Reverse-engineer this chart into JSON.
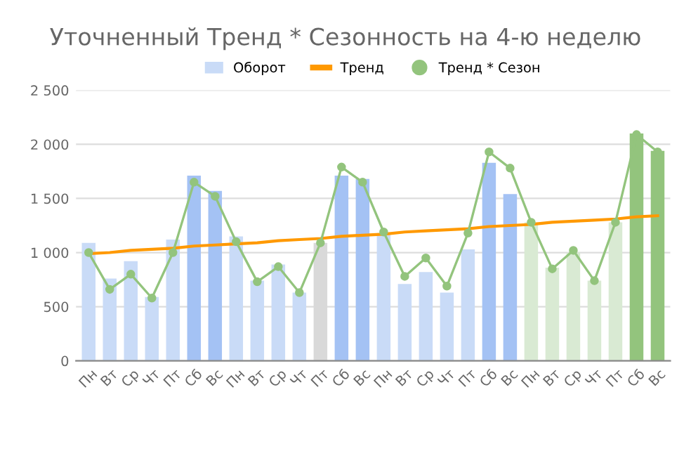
{
  "chart_data": {
    "type": "bar",
    "title": "Уточненный Тренд * Сезонность на 4-ю неделю",
    "categories": [
      "Пн",
      "Вт",
      "Ср",
      "Чт",
      "Пт",
      "Сб",
      "Вс",
      "Пн",
      "Вт",
      "Ср",
      "Чт",
      "Пт",
      "Сб",
      "Вс",
      "Пн",
      "Вт",
      "Ср",
      "Чт",
      "Пт",
      "Сб",
      "Вс",
      "Пн",
      "Вт",
      "Ср",
      "Чт",
      "Пт",
      "Сб",
      "Вс"
    ],
    "series": [
      {
        "name": "Оборот",
        "color": "#c9dbf7",
        "colors": [
          "#c9dbf7",
          "#c9dbf7",
          "#c9dbf7",
          "#c9dbf7",
          "#c9dbf7",
          "#a4c2f4",
          "#a4c2f4",
          "#c9dbf7",
          "#c9dbf7",
          "#c9dbf7",
          "#c9dbf7",
          "#d9d9d9",
          "#a4c2f4",
          "#a4c2f4",
          "#c9dbf7",
          "#c9dbf7",
          "#c9dbf7",
          "#c9dbf7",
          "#c9dbf7",
          "#a4c2f4",
          "#a4c2f4",
          "#d9ead3",
          "#d9ead3",
          "#d9ead3",
          "#d9ead3",
          "#d9ead3",
          "#93c47d",
          "#93c47d"
        ],
        "values": [
          1090,
          760,
          920,
          590,
          1120,
          1710,
          1570,
          1150,
          740,
          890,
          630,
          1090,
          1710,
          1680,
          1180,
          710,
          820,
          630,
          1030,
          1830,
          1540,
          1280,
          860,
          1000,
          740,
          1280,
          2100,
          1940
        ]
      },
      {
        "name": "Тренд",
        "type": "line",
        "color": "#ff9900",
        "marker": "none",
        "values": [
          990,
          1000,
          1020,
          1030,
          1040,
          1060,
          1070,
          1080,
          1090,
          1110,
          1120,
          1130,
          1150,
          1160,
          1170,
          1190,
          1200,
          1210,
          1220,
          1240,
          1250,
          1260,
          1280,
          1290,
          1300,
          1310,
          1330,
          1340
        ]
      },
      {
        "name": "Тренд * Сезон",
        "type": "line",
        "color": "#93c47d",
        "marker": "circle",
        "values": [
          1000,
          660,
          800,
          580,
          1000,
          1650,
          1520,
          1100,
          730,
          870,
          630,
          1090,
          1790,
          1650,
          1190,
          780,
          950,
          690,
          1180,
          1930,
          1780,
          1280,
          850,
          1020,
          740,
          1280,
          2090,
          1930
        ]
      }
    ],
    "ylim": [
      0,
      2500
    ],
    "yticks": [
      0,
      500,
      {
        "value": 1000,
        "label": "1 000"
      },
      {
        "value": 1500,
        "label": "1 500"
      },
      {
        "value": 2000,
        "label": "2 000"
      },
      {
        "value": 2500,
        "label": "2 500"
      }
    ],
    "grid": "y",
    "legend": "top"
  }
}
